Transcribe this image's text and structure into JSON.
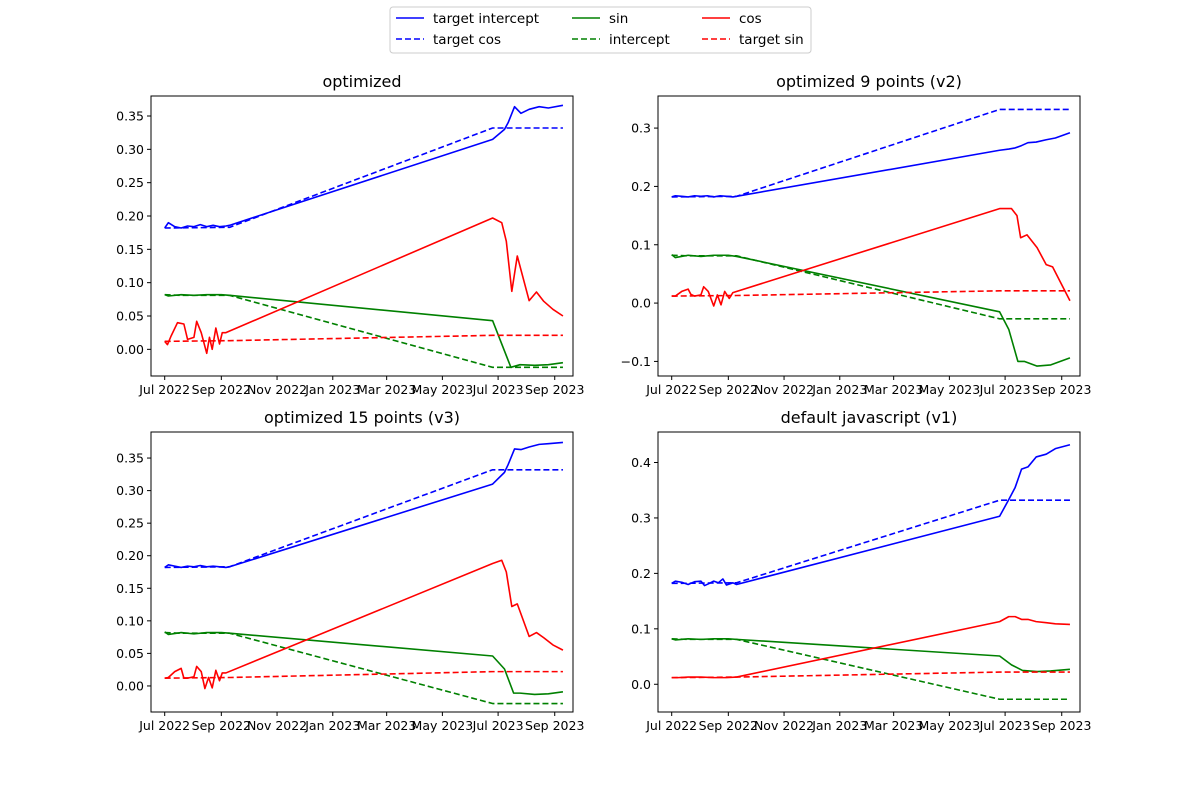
{
  "legend": {
    "placement": "top-center",
    "entries": [
      {
        "label": "target intercept",
        "color": "#0000ff",
        "style": "solid"
      },
      {
        "label": "target cos",
        "color": "#0000ff",
        "style": "dashed"
      },
      {
        "label": "sin",
        "color": "#008000",
        "style": "solid"
      },
      {
        "label": "intercept",
        "color": "#008000",
        "style": "dashed"
      },
      {
        "label": "cos",
        "color": "#ff0000",
        "style": "solid"
      },
      {
        "label": "target sin",
        "color": "#ff0000",
        "style": "dashed"
      }
    ]
  },
  "x_tick_labels": [
    "Jul 2022",
    "Sep 2022",
    "Nov 2022",
    "Jan 2023",
    "Mar 2023",
    "May 2023",
    "Jul 2023",
    "Sep 2023"
  ],
  "x_ticks": [
    "2022-07-01",
    "2022-09-01",
    "2022-11-01",
    "2023-01-01",
    "2023-03-01",
    "2023-05-01",
    "2023-07-01",
    "2023-09-01"
  ],
  "xlim": [
    "2022-06-16",
    "2023-09-21"
  ],
  "chart_data": [
    {
      "type": "line",
      "title": "optimized",
      "ylim": [
        -0.04,
        0.38
      ],
      "yticks": [
        0.0,
        0.05,
        0.1,
        0.15,
        0.2,
        0.25,
        0.3,
        0.35
      ],
      "ytick_labels": [
        "0.00",
        "0.05",
        "0.10",
        "0.15",
        "0.20",
        "0.25",
        "0.30",
        "0.35"
      ],
      "series": [
        {
          "name": "target intercept",
          "color": "#0000ff",
          "style": "solid",
          "x": [
            "2022-07-01",
            "2022-07-05",
            "2022-07-12",
            "2022-07-19",
            "2022-07-26",
            "2022-08-02",
            "2022-08-09",
            "2022-08-16",
            "2022-08-23",
            "2022-08-30",
            "2022-09-06",
            "2022-09-10",
            "2023-06-25",
            "2023-07-08",
            "2023-07-12",
            "2023-07-19",
            "2023-07-26",
            "2023-08-04",
            "2023-08-15",
            "2023-08-25",
            "2023-09-10"
          ],
          "y": [
            0.182,
            0.19,
            0.184,
            0.182,
            0.185,
            0.184,
            0.187,
            0.184,
            0.186,
            0.184,
            0.185,
            0.186,
            0.315,
            0.33,
            0.34,
            0.364,
            0.354,
            0.36,
            0.364,
            0.362,
            0.366
          ]
        },
        {
          "name": "target cos",
          "color": "#0000ff",
          "style": "dashed",
          "x": [
            "2022-07-01",
            "2022-09-10",
            "2023-06-25",
            "2023-09-10"
          ],
          "y": [
            0.182,
            0.183,
            0.332,
            0.332
          ]
        },
        {
          "name": "sin",
          "color": "#008000",
          "style": "solid",
          "x": [
            "2022-07-01",
            "2022-07-05",
            "2022-07-19",
            "2022-08-02",
            "2022-08-16",
            "2022-09-01",
            "2022-09-10",
            "2023-06-25",
            "2023-07-15",
            "2023-07-25",
            "2023-08-10",
            "2023-08-25",
            "2023-09-10"
          ],
          "y": [
            0.082,
            0.08,
            0.082,
            0.081,
            0.082,
            0.082,
            0.081,
            0.043,
            -0.027,
            -0.023,
            -0.024,
            -0.023,
            -0.02
          ]
        },
        {
          "name": "intercept",
          "color": "#008000",
          "style": "dashed",
          "x": [
            "2022-07-01",
            "2022-07-19",
            "2022-09-10",
            "2023-06-25",
            "2023-09-10"
          ],
          "y": [
            0.082,
            0.081,
            0.081,
            -0.027,
            -0.027
          ]
        },
        {
          "name": "cos",
          "color": "#ff0000",
          "style": "solid",
          "x": [
            "2022-07-01",
            "2022-07-04",
            "2022-07-08",
            "2022-07-15",
            "2022-07-22",
            "2022-07-26",
            "2022-08-02",
            "2022-08-05",
            "2022-08-10",
            "2022-08-16",
            "2022-08-19",
            "2022-08-22",
            "2022-08-26",
            "2022-08-30",
            "2022-09-02",
            "2022-09-06",
            "2023-06-25",
            "2023-07-05",
            "2023-07-10",
            "2023-07-16",
            "2023-07-22",
            "2023-08-04",
            "2023-08-12",
            "2023-08-20",
            "2023-08-30",
            "2023-09-10"
          ],
          "y": [
            0.012,
            0.007,
            0.02,
            0.04,
            0.038,
            0.015,
            0.018,
            0.042,
            0.025,
            -0.006,
            0.018,
            0.0,
            0.032,
            0.008,
            0.025,
            0.025,
            0.197,
            0.19,
            0.162,
            0.087,
            0.14,
            0.073,
            0.086,
            0.072,
            0.06,
            0.05
          ]
        },
        {
          "name": "target sin",
          "color": "#ff0000",
          "style": "dashed",
          "x": [
            "2022-07-01",
            "2022-09-10",
            "2023-06-25",
            "2023-09-10"
          ],
          "y": [
            0.012,
            0.013,
            0.021,
            0.021
          ]
        }
      ]
    },
    {
      "type": "line",
      "title": "optimized 9 points (v2)",
      "ylim": [
        -0.125,
        0.355
      ],
      "yticks": [
        -0.1,
        0.0,
        0.1,
        0.2,
        0.3
      ],
      "ytick_labels": [
        "−0.1",
        "0.0",
        "0.1",
        "0.2",
        "0.3"
      ],
      "series": [
        {
          "name": "target intercept",
          "color": "#0000ff",
          "style": "solid",
          "x": [
            "2022-07-01",
            "2022-07-05",
            "2022-07-12",
            "2022-07-19",
            "2022-07-26",
            "2022-08-02",
            "2022-08-09",
            "2022-08-16",
            "2022-08-23",
            "2022-08-30",
            "2022-09-06",
            "2022-09-10",
            "2023-06-25",
            "2023-07-05",
            "2023-07-12",
            "2023-07-19",
            "2023-07-26",
            "2023-08-04",
            "2023-08-15",
            "2023-08-25",
            "2023-09-10"
          ],
          "y": [
            0.182,
            0.184,
            0.183,
            0.182,
            0.184,
            0.183,
            0.184,
            0.182,
            0.184,
            0.183,
            0.182,
            0.183,
            0.262,
            0.264,
            0.266,
            0.27,
            0.275,
            0.276,
            0.28,
            0.283,
            0.292
          ]
        },
        {
          "name": "target cos",
          "color": "#0000ff",
          "style": "dashed",
          "x": [
            "2022-07-01",
            "2022-09-10",
            "2023-06-25",
            "2023-09-10"
          ],
          "y": [
            0.182,
            0.183,
            0.332,
            0.332
          ]
        },
        {
          "name": "sin",
          "color": "#008000",
          "style": "solid",
          "x": [
            "2022-07-01",
            "2022-07-05",
            "2022-07-19",
            "2022-08-02",
            "2022-08-16",
            "2022-09-01",
            "2022-09-10",
            "2023-06-25",
            "2023-07-05",
            "2023-07-15",
            "2023-07-22",
            "2023-08-05",
            "2023-08-20",
            "2023-09-10"
          ],
          "y": [
            0.083,
            0.078,
            0.082,
            0.08,
            0.082,
            0.082,
            0.08,
            -0.015,
            -0.045,
            -0.1,
            -0.1,
            -0.108,
            -0.106,
            -0.094
          ]
        },
        {
          "name": "intercept",
          "color": "#008000",
          "style": "dashed",
          "x": [
            "2022-07-01",
            "2022-07-19",
            "2022-09-10",
            "2023-06-25",
            "2023-09-10"
          ],
          "y": [
            0.082,
            0.081,
            0.081,
            -0.027,
            -0.027
          ]
        },
        {
          "name": "cos",
          "color": "#ff0000",
          "style": "solid",
          "x": [
            "2022-07-01",
            "2022-07-05",
            "2022-07-12",
            "2022-07-19",
            "2022-07-22",
            "2022-07-26",
            "2022-08-02",
            "2022-08-05",
            "2022-08-10",
            "2022-08-16",
            "2022-08-20",
            "2022-08-24",
            "2022-08-28",
            "2022-09-02",
            "2022-09-06",
            "2023-06-25",
            "2023-07-02",
            "2023-07-08",
            "2023-07-14",
            "2023-07-18",
            "2023-07-25",
            "2023-08-05",
            "2023-08-15",
            "2023-08-22",
            "2023-09-10"
          ],
          "y": [
            0.012,
            0.012,
            0.02,
            0.024,
            0.015,
            0.012,
            0.014,
            0.028,
            0.02,
            -0.005,
            0.014,
            -0.003,
            0.02,
            0.008,
            0.018,
            0.162,
            0.162,
            0.162,
            0.15,
            0.112,
            0.117,
            0.095,
            0.066,
            0.062,
            0.004
          ]
        },
        {
          "name": "target sin",
          "color": "#ff0000",
          "style": "dashed",
          "x": [
            "2022-07-01",
            "2022-09-10",
            "2023-06-25",
            "2023-09-10"
          ],
          "y": [
            0.012,
            0.013,
            0.021,
            0.021
          ]
        }
      ]
    },
    {
      "type": "line",
      "title": "optimized 15 points (v3)",
      "ylim": [
        -0.04,
        0.39
      ],
      "yticks": [
        0.0,
        0.05,
        0.1,
        0.15,
        0.2,
        0.25,
        0.3,
        0.35
      ],
      "ytick_labels": [
        "0.00",
        "0.05",
        "0.10",
        "0.15",
        "0.20",
        "0.25",
        "0.30",
        "0.35"
      ],
      "series": [
        {
          "name": "target intercept",
          "color": "#0000ff",
          "style": "solid",
          "x": [
            "2022-07-01",
            "2022-07-05",
            "2022-07-12",
            "2022-07-19",
            "2022-07-26",
            "2022-08-02",
            "2022-08-09",
            "2022-08-16",
            "2022-08-23",
            "2022-08-30",
            "2022-09-06",
            "2022-09-10",
            "2023-06-25",
            "2023-07-08",
            "2023-07-12",
            "2023-07-19",
            "2023-07-26",
            "2023-08-04",
            "2023-08-15",
            "2023-08-25",
            "2023-09-10"
          ],
          "y": [
            0.182,
            0.186,
            0.184,
            0.182,
            0.184,
            0.183,
            0.185,
            0.183,
            0.184,
            0.183,
            0.182,
            0.183,
            0.31,
            0.328,
            0.34,
            0.364,
            0.363,
            0.367,
            0.371,
            0.372,
            0.374
          ]
        },
        {
          "name": "target cos",
          "color": "#0000ff",
          "style": "dashed",
          "x": [
            "2022-07-01",
            "2022-09-10",
            "2023-06-25",
            "2023-09-10"
          ],
          "y": [
            0.182,
            0.183,
            0.332,
            0.332
          ]
        },
        {
          "name": "sin",
          "color": "#008000",
          "style": "solid",
          "x": [
            "2022-07-01",
            "2022-07-05",
            "2022-07-19",
            "2022-08-02",
            "2022-08-16",
            "2022-09-01",
            "2022-09-10",
            "2023-06-25",
            "2023-07-08",
            "2023-07-18",
            "2023-07-25",
            "2023-08-10",
            "2023-08-25",
            "2023-09-10"
          ],
          "y": [
            0.083,
            0.079,
            0.082,
            0.08,
            0.082,
            0.082,
            0.081,
            0.046,
            0.026,
            -0.011,
            -0.011,
            -0.013,
            -0.012,
            -0.009
          ]
        },
        {
          "name": "intercept",
          "color": "#008000",
          "style": "dashed",
          "x": [
            "2022-07-01",
            "2022-07-19",
            "2022-09-10",
            "2023-06-25",
            "2023-09-10"
          ],
          "y": [
            0.082,
            0.081,
            0.081,
            -0.027,
            -0.027
          ]
        },
        {
          "name": "cos",
          "color": "#ff0000",
          "style": "solid",
          "x": [
            "2022-07-01",
            "2022-07-05",
            "2022-07-12",
            "2022-07-19",
            "2022-07-22",
            "2022-07-26",
            "2022-08-02",
            "2022-08-05",
            "2022-08-10",
            "2022-08-14",
            "2022-08-18",
            "2022-08-22",
            "2022-08-26",
            "2022-08-30",
            "2022-09-02",
            "2022-09-06",
            "2023-06-25",
            "2023-07-05",
            "2023-07-10",
            "2023-07-16",
            "2023-07-22",
            "2023-08-04",
            "2023-08-12",
            "2023-08-20",
            "2023-08-30",
            "2023-09-10"
          ],
          "y": [
            0.012,
            0.013,
            0.022,
            0.027,
            0.012,
            0.012,
            0.014,
            0.03,
            0.022,
            -0.004,
            0.013,
            -0.003,
            0.024,
            0.008,
            0.02,
            0.02,
            0.188,
            0.193,
            0.175,
            0.122,
            0.126,
            0.076,
            0.082,
            0.074,
            0.063,
            0.055
          ]
        },
        {
          "name": "target sin",
          "color": "#ff0000",
          "style": "dashed",
          "x": [
            "2022-07-01",
            "2022-09-10",
            "2023-06-25",
            "2023-09-10"
          ],
          "y": [
            0.012,
            0.013,
            0.022,
            0.022
          ]
        }
      ]
    },
    {
      "type": "line",
      "title": "default javascript (v1)",
      "ylim": [
        -0.05,
        0.455
      ],
      "yticks": [
        0.0,
        0.1,
        0.2,
        0.3,
        0.4
      ],
      "ytick_labels": [
        "0.0",
        "0.1",
        "0.2",
        "0.3",
        "0.4"
      ],
      "series": [
        {
          "name": "target intercept",
          "color": "#0000ff",
          "style": "solid",
          "x": [
            "2022-07-01",
            "2022-07-05",
            "2022-07-12",
            "2022-07-19",
            "2022-07-26",
            "2022-08-02",
            "2022-08-06",
            "2022-08-10",
            "2022-08-16",
            "2022-08-21",
            "2022-08-26",
            "2022-08-30",
            "2022-09-06",
            "2022-09-10",
            "2023-06-25",
            "2023-07-05",
            "2023-07-12",
            "2023-07-19",
            "2023-07-26",
            "2023-08-04",
            "2023-08-15",
            "2023-08-25",
            "2023-09-10"
          ],
          "y": [
            0.182,
            0.186,
            0.184,
            0.18,
            0.185,
            0.186,
            0.178,
            0.181,
            0.186,
            0.183,
            0.19,
            0.179,
            0.183,
            0.18,
            0.303,
            0.333,
            0.355,
            0.388,
            0.392,
            0.41,
            0.415,
            0.425,
            0.432
          ]
        },
        {
          "name": "target cos",
          "color": "#0000ff",
          "style": "dashed",
          "x": [
            "2022-07-01",
            "2022-09-10",
            "2023-06-25",
            "2023-09-10"
          ],
          "y": [
            0.182,
            0.183,
            0.332,
            0.332
          ]
        },
        {
          "name": "sin",
          "color": "#008000",
          "style": "solid",
          "x": [
            "2022-07-01",
            "2022-07-05",
            "2022-07-19",
            "2022-08-02",
            "2022-08-16",
            "2022-09-01",
            "2022-09-10",
            "2023-06-25",
            "2023-07-08",
            "2023-07-20",
            "2023-08-05",
            "2023-08-20",
            "2023-09-10"
          ],
          "y": [
            0.082,
            0.08,
            0.082,
            0.081,
            0.082,
            0.082,
            0.081,
            0.051,
            0.035,
            0.025,
            0.023,
            0.024,
            0.027
          ]
        },
        {
          "name": "intercept",
          "color": "#008000",
          "style": "dashed",
          "x": [
            "2022-07-01",
            "2022-07-19",
            "2022-09-10",
            "2023-06-25",
            "2023-09-10"
          ],
          "y": [
            0.082,
            0.081,
            0.081,
            -0.027,
            -0.027
          ]
        },
        {
          "name": "cos",
          "color": "#ff0000",
          "style": "solid",
          "x": [
            "2022-07-01",
            "2022-07-08",
            "2022-07-19",
            "2022-08-02",
            "2022-08-16",
            "2022-08-30",
            "2022-09-10",
            "2023-06-25",
            "2023-07-05",
            "2023-07-12",
            "2023-07-19",
            "2023-07-26",
            "2023-08-04",
            "2023-08-15",
            "2023-08-25",
            "2023-09-10"
          ],
          "y": [
            0.012,
            0.012,
            0.013,
            0.013,
            0.012,
            0.012,
            0.013,
            0.113,
            0.122,
            0.122,
            0.117,
            0.117,
            0.113,
            0.111,
            0.109,
            0.108
          ]
        },
        {
          "name": "target sin",
          "color": "#ff0000",
          "style": "dashed",
          "x": [
            "2022-07-01",
            "2022-09-10",
            "2023-06-25",
            "2023-09-10"
          ],
          "y": [
            0.012,
            0.013,
            0.022,
            0.022
          ]
        }
      ]
    }
  ]
}
